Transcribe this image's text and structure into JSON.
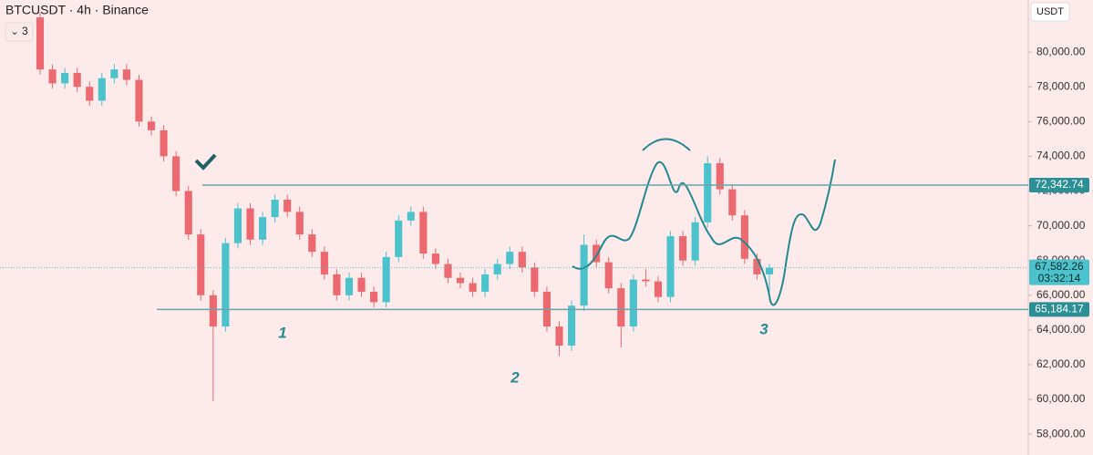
{
  "chart_data": {
    "type": "candlestick",
    "title": "BTCUSDT · 4h · Binance",
    "indicator": "3",
    "currency": "USDT",
    "open": [
      82000,
      79000,
      78200,
      78800,
      78000,
      77200,
      78500,
      79000,
      78400,
      76000,
      75500,
      74000,
      72000,
      69500,
      66000,
      64200,
      69000,
      71000,
      69200,
      70500,
      71500,
      70800,
      69500,
      68500,
      67200,
      66000,
      67000,
      66200,
      65600,
      68200,
      70300,
      70800,
      68400,
      67800,
      67000,
      66700,
      66200,
      67200,
      67800,
      68500,
      67600,
      66200,
      64200,
      63100,
      65400,
      68900,
      67900,
      66400,
      64200,
      66900,
      66800,
      65900,
      69400,
      68000,
      70200,
      73600,
      72100,
      70600,
      68100,
      67200
    ],
    "high": [
      82300,
      79300,
      79100,
      79100,
      78300,
      78800,
      79300,
      79300,
      78700,
      76300,
      75800,
      74300,
      72300,
      69800,
      66300,
      69300,
      71300,
      71300,
      70800,
      71800,
      71800,
      71100,
      69800,
      68800,
      67500,
      67300,
      67300,
      66500,
      68500,
      70600,
      71100,
      71100,
      68700,
      68100,
      67300,
      67000,
      67500,
      68100,
      68800,
      68800,
      67900,
      66500,
      64500,
      65700,
      69500,
      69200,
      68200,
      66700,
      67200,
      67500,
      67100,
      69700,
      69700,
      70500,
      74000,
      73900,
      72400,
      70900,
      68400,
      67800
    ],
    "low": [
      78700,
      77900,
      77900,
      77700,
      76900,
      76900,
      78200,
      78100,
      75700,
      75200,
      73700,
      71700,
      69200,
      65700,
      59900,
      63900,
      68700,
      68900,
      68900,
      70200,
      70500,
      69200,
      68200,
      66900,
      65700,
      65700,
      65900,
      65300,
      65300,
      67900,
      70000,
      68100,
      67500,
      66700,
      66400,
      65900,
      65900,
      66900,
      67500,
      67300,
      65900,
      63900,
      62500,
      62800,
      65100,
      67600,
      66100,
      63000,
      63900,
      66500,
      65600,
      65600,
      67700,
      67700,
      69900,
      71800,
      70300,
      67800,
      66900,
      66000
    ],
    "close": [
      79000,
      78200,
      78800,
      78000,
      77200,
      78500,
      79000,
      78400,
      76000,
      75500,
      74000,
      72000,
      69500,
      66000,
      64200,
      69000,
      71000,
      69200,
      70500,
      71500,
      70800,
      69500,
      68500,
      67200,
      66000,
      67000,
      66200,
      65600,
      68200,
      70300,
      70800,
      68400,
      67800,
      67000,
      66700,
      66200,
      67200,
      67800,
      68500,
      67600,
      66200,
      64200,
      63100,
      65400,
      68900,
      67900,
      66400,
      64200,
      66900,
      66800,
      65900,
      69400,
      68000,
      70200,
      73600,
      72100,
      70600,
      68100,
      67200,
      67582.26
    ],
    "up_color": "#4cc3cc",
    "down_color": "#ec6a6f",
    "ylim": [
      56800,
      83000
    ],
    "yticks": [
      {
        "value": 58000,
        "label": "58,000.00"
      },
      {
        "value": 60000,
        "label": "60,000.00"
      },
      {
        "value": 62000,
        "label": "62,000.00"
      },
      {
        "value": 64000,
        "label": "64,000.00"
      },
      {
        "value": 66000,
        "label": "66,000.00"
      },
      {
        "value": 68000,
        "label": "68,000.00"
      },
      {
        "value": 70000,
        "label": "70,000.00"
      },
      {
        "value": 72000,
        "label": "72,000.00"
      },
      {
        "value": 74000,
        "label": "74,000.00"
      },
      {
        "value": 76000,
        "label": "76,000.00"
      },
      {
        "value": 78000,
        "label": "78,000.00"
      },
      {
        "value": 80000,
        "label": "80,000.00"
      }
    ],
    "levels": [
      {
        "value": 72342.74,
        "label": "72,342.74"
      },
      {
        "value": 65184.17,
        "label": "65,184.17"
      }
    ],
    "last_price": {
      "value": 67582.26,
      "label": "67,582.26"
    },
    "countdown": "03:32:14",
    "annotations": [
      "1",
      "2",
      "3"
    ]
  }
}
